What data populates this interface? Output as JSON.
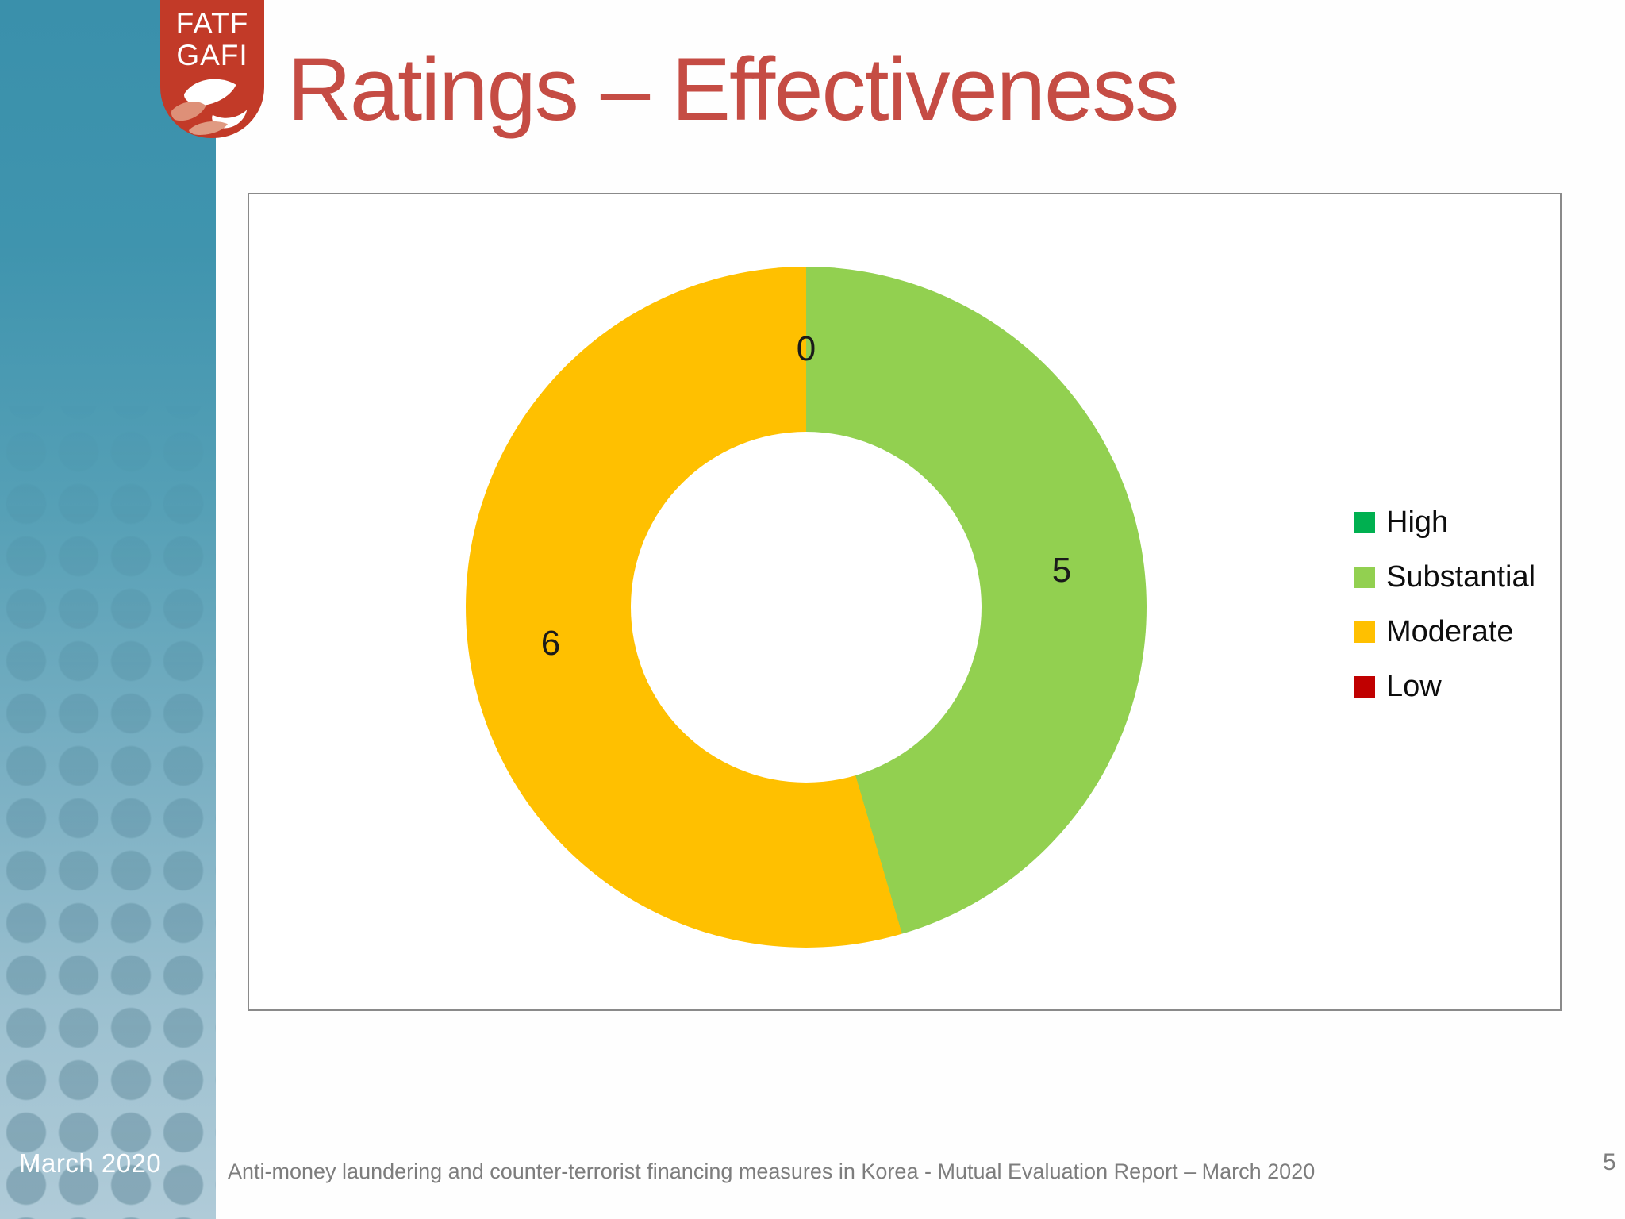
{
  "slide": {
    "title": "Ratings – Effectiveness",
    "sidebar_date": "March 2020",
    "footer": "Anti-money laundering and counter-terrorist financing measures in Korea - Mutual Evaluation Report – March 2020",
    "page_number": "5"
  },
  "logo": {
    "line1": "FATF",
    "line2": "GAFI"
  },
  "chart_data": {
    "type": "pie",
    "subtype": "donut",
    "title": "",
    "categories": [
      "High",
      "Substantial",
      "Moderate",
      "Low"
    ],
    "values": [
      0,
      5,
      6,
      0
    ],
    "colors": [
      "#00b050",
      "#92d050",
      "#ffc000",
      "#c00000"
    ],
    "data_labels": [
      "0",
      "5",
      "6",
      "0"
    ],
    "start_angle_deg": 0,
    "direction": "clockwise",
    "inner_radius_ratio": 0.51,
    "legend_position": "right",
    "grid": false
  },
  "theme": {
    "title_color": "#c54c44",
    "badge_red": "#c23a28",
    "sidebar_top": "#3a90ab",
    "sidebar_bottom": "#b0cbd8",
    "footer_color": "#7d7d7d",
    "label_color": "#1a1a1a"
  }
}
